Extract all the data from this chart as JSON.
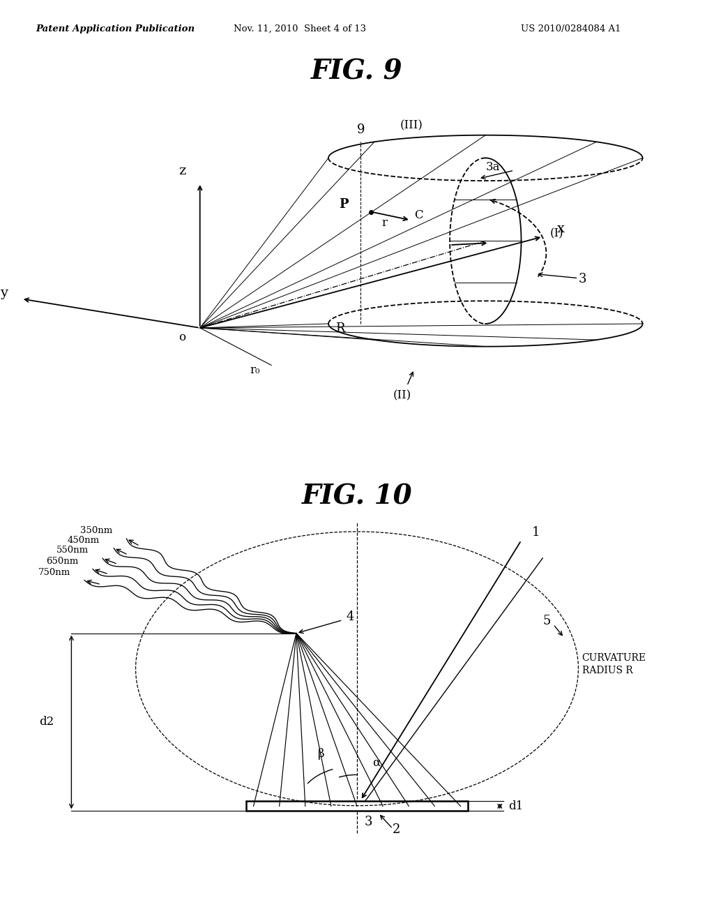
{
  "bg_color": "#ffffff",
  "header_left": "Patent Application Publication",
  "header_mid": "Nov. 11, 2010  Sheet 4 of 13",
  "header_right": "US 2010/0284084 A1",
  "fig9_title": "FIG. 9",
  "fig10_title": "FIG. 10"
}
